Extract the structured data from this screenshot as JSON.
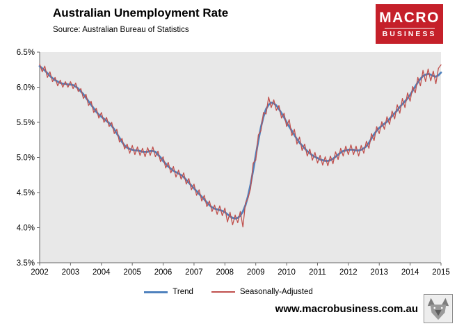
{
  "header": {
    "title": "Australian Unemployment Rate",
    "source": "Source: Australian Bureau of Statistics"
  },
  "logo": {
    "line1": "MACRO",
    "line2": "BUSINESS",
    "background": "#c5202a"
  },
  "footer": {
    "website": "www.macrobusiness.com.au"
  },
  "chart_data": {
    "type": "line",
    "title": "Australian Unemployment Rate",
    "x_unit": "month",
    "x_start_year": 2002,
    "x_end_year": 2015,
    "x_tick_labels": [
      "2002",
      "2003",
      "2004",
      "2005",
      "2006",
      "2007",
      "2008",
      "2009",
      "2010",
      "2011",
      "2012",
      "2013",
      "2014",
      "2015"
    ],
    "y_ticks": [
      6.5,
      6.0,
      5.5,
      5.0,
      4.5,
      4.0,
      3.5
    ],
    "y_tick_labels": [
      "6.5%",
      "6.0%",
      "5.5%",
      "5.0%",
      "4.5%",
      "4.0%",
      "3.5%"
    ],
    "ylim": [
      3.5,
      6.5
    ],
    "grid": false,
    "legend_position": "bottom",
    "plot_bg": "#e8e8e8",
    "axis_color": "#666666",
    "series": [
      {
        "name": "Trend",
        "color": "#4f81bd",
        "stroke_width": 2.8,
        "values": [
          6.3,
          6.27,
          6.24,
          6.2,
          6.16,
          6.13,
          6.1,
          6.08,
          6.06,
          6.05,
          6.05,
          6.04,
          6.04,
          6.03,
          6.01,
          5.98,
          5.94,
          5.9,
          5.85,
          5.8,
          5.75,
          5.7,
          5.65,
          5.61,
          5.58,
          5.55,
          5.52,
          5.49,
          5.45,
          5.4,
          5.34,
          5.28,
          5.22,
          5.17,
          5.14,
          5.12,
          5.11,
          5.1,
          5.1,
          5.09,
          5.08,
          5.08,
          5.08,
          5.09,
          5.09,
          5.08,
          5.04,
          5.0,
          4.95,
          4.91,
          4.87,
          4.84,
          4.81,
          4.79,
          4.77,
          4.75,
          4.72,
          4.68,
          4.64,
          4.6,
          4.56,
          4.52,
          4.48,
          4.44,
          4.4,
          4.36,
          4.32,
          4.29,
          4.27,
          4.26,
          4.25,
          4.24,
          4.22,
          4.19,
          4.16,
          4.14,
          4.13,
          4.14,
          4.17,
          4.23,
          4.32,
          4.45,
          4.62,
          4.82,
          5.03,
          5.24,
          5.43,
          5.58,
          5.69,
          5.75,
          5.78,
          5.77,
          5.74,
          5.69,
          5.63,
          5.57,
          5.5,
          5.44,
          5.38,
          5.32,
          5.26,
          5.21,
          5.17,
          5.13,
          5.09,
          5.06,
          5.03,
          5.01,
          4.99,
          4.97,
          4.96,
          4.95,
          4.95,
          4.96,
          4.98,
          5.01,
          5.04,
          5.07,
          5.09,
          5.1,
          5.11,
          5.11,
          5.11,
          5.1,
          5.1,
          5.11,
          5.13,
          5.16,
          5.21,
          5.27,
          5.33,
          5.38,
          5.42,
          5.45,
          5.48,
          5.51,
          5.55,
          5.59,
          5.63,
          5.67,
          5.72,
          5.76,
          5.8,
          5.84,
          5.89,
          5.95,
          6.01,
          6.07,
          6.12,
          6.16,
          6.18,
          6.19,
          6.18,
          6.16,
          6.15,
          6.17,
          6.21
        ]
      },
      {
        "name": "Seasonally-Adjusted",
        "color": "#c0504d",
        "stroke_width": 1.3,
        "values": [
          6.33,
          6.22,
          6.3,
          6.14,
          6.22,
          6.08,
          6.14,
          6.02,
          6.1,
          6.0,
          6.08,
          6.0,
          6.08,
          5.98,
          6.06,
          5.94,
          5.98,
          5.84,
          5.9,
          5.74,
          5.8,
          5.64,
          5.7,
          5.56,
          5.64,
          5.5,
          5.57,
          5.44,
          5.5,
          5.34,
          5.4,
          5.22,
          5.27,
          5.12,
          5.19,
          5.06,
          5.17,
          5.04,
          5.15,
          5.03,
          5.13,
          5.01,
          5.14,
          5.03,
          5.15,
          5.01,
          5.09,
          4.94,
          5.01,
          4.85,
          4.93,
          4.78,
          4.87,
          4.72,
          4.82,
          4.69,
          4.78,
          4.62,
          4.7,
          4.54,
          4.62,
          4.46,
          4.54,
          4.38,
          4.46,
          4.3,
          4.38,
          4.23,
          4.32,
          4.19,
          4.31,
          4.17,
          4.28,
          4.08,
          4.22,
          4.04,
          4.18,
          4.07,
          4.23,
          4.01,
          4.35,
          4.42,
          4.56,
          4.92,
          4.96,
          5.32,
          5.38,
          5.64,
          5.62,
          5.86,
          5.71,
          5.82,
          5.67,
          5.74,
          5.56,
          5.63,
          5.44,
          5.54,
          5.31,
          5.4,
          5.19,
          5.29,
          5.1,
          5.19,
          5.02,
          5.12,
          4.96,
          5.07,
          4.92,
          5.03,
          4.89,
          5.01,
          4.88,
          5.02,
          4.91,
          5.08,
          4.97,
          5.13,
          5.02,
          5.16,
          5.04,
          5.18,
          5.04,
          5.16,
          5.02,
          5.17,
          5.06,
          5.23,
          5.13,
          5.34,
          5.24,
          5.44,
          5.34,
          5.51,
          5.4,
          5.58,
          5.47,
          5.66,
          5.55,
          5.75,
          5.63,
          5.84,
          5.71,
          5.92,
          5.8,
          6.01,
          5.92,
          6.14,
          6.02,
          6.24,
          6.08,
          6.26,
          6.09,
          6.23,
          6.05,
          6.27,
          6.32
        ]
      }
    ]
  }
}
